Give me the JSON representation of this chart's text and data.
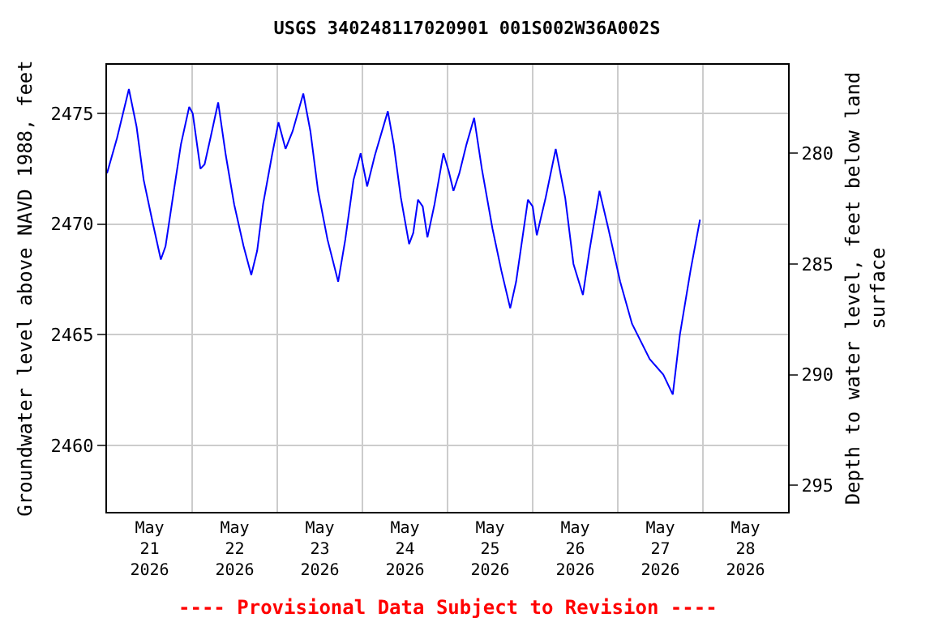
{
  "chart_data": {
    "type": "line",
    "title": "USGS 340248117020901 001S002W36A002S",
    "ylabel": "Groundwater level above NAVD 1988, feet",
    "y2label": "Depth to water level, feet below land\nsurface",
    "annotations": [
      "---- Provisional Data Subject to Revision ----"
    ],
    "xlim": [
      "2026-05-21T00:00",
      "2026-05-29T00:00"
    ],
    "xticks": [
      {
        "value": "2026-05-21T12:00",
        "label": "May\n21\n2026"
      },
      {
        "value": "2026-05-22T00:00",
        "label": null
      },
      {
        "value": "2026-05-22T12:00",
        "label": "May\n22\n2026"
      },
      {
        "value": "2026-05-23T00:00",
        "label": null
      },
      {
        "value": "2026-05-23T12:00",
        "label": "May\n23\n2026"
      },
      {
        "value": "2026-05-24T00:00",
        "label": null
      },
      {
        "value": "2026-05-24T12:00",
        "label": "May\n24\n2026"
      },
      {
        "value": "2026-05-25T00:00",
        "label": null
      },
      {
        "value": "2026-05-25T12:00",
        "label": "May\n25\n2026"
      },
      {
        "value": "2026-05-26T00:00",
        "label": null
      },
      {
        "value": "2026-05-26T12:00",
        "label": "May\n26\n2026"
      },
      {
        "value": "2026-05-27T00:00",
        "label": null
      },
      {
        "value": "2026-05-27T12:00",
        "label": "May\n27\n2026"
      },
      {
        "value": "2026-05-28T00:00",
        "label": null
      },
      {
        "value": "2026-05-28T12:00",
        "label": "May\n28\n2026"
      }
    ],
    "ylim": [
      2457.0,
      2477.2
    ],
    "yticks": [
      2460,
      2465,
      2470,
      2475
    ],
    "y2lim": [
      296.2,
      276.0
    ],
    "y2ticks": [
      280,
      285,
      290,
      295
    ],
    "grid": true,
    "legend": false,
    "series": [
      {
        "color": "#0000ff",
        "line_style": "solid",
        "x": [
          "2026-05-21T00:00",
          "2026-05-21T02:50",
          "2026-05-21T06:10",
          "2026-05-21T08:20",
          "2026-05-21T10:20",
          "2026-05-21T12:50",
          "2026-05-21T15:10",
          "2026-05-21T16:30",
          "2026-05-21T18:50",
          "2026-05-21T20:50",
          "2026-05-21T23:10",
          "2026-05-22T00:10",
          "2026-05-22T02:20",
          "2026-05-22T03:30",
          "2026-05-22T05:10",
          "2026-05-22T07:20",
          "2026-05-22T09:30",
          "2026-05-22T11:50",
          "2026-05-22T14:30",
          "2026-05-22T16:40",
          "2026-05-22T18:20",
          "2026-05-22T20:00",
          "2026-05-22T22:30",
          "2026-05-23T00:20",
          "2026-05-23T02:20",
          "2026-05-23T04:20",
          "2026-05-23T07:20",
          "2026-05-23T09:20",
          "2026-05-23T11:30",
          "2026-05-23T14:10",
          "2026-05-23T17:10",
          "2026-05-23T19:10",
          "2026-05-23T21:30",
          "2026-05-23T23:30",
          "2026-05-24T01:20",
          "2026-05-24T03:30",
          "2026-05-24T07:10",
          "2026-05-24T08:50",
          "2026-05-24T10:50",
          "2026-05-24T13:10",
          "2026-05-24T14:20",
          "2026-05-24T15:40",
          "2026-05-24T17:00",
          "2026-05-24T18:20",
          "2026-05-24T20:20",
          "2026-05-24T22:50",
          "2026-05-25T00:20",
          "2026-05-25T01:40",
          "2026-05-25T03:20",
          "2026-05-25T05:20",
          "2026-05-25T07:30",
          "2026-05-25T09:40",
          "2026-05-25T12:40",
          "2026-05-25T15:10",
          "2026-05-25T17:40",
          "2026-05-25T19:20",
          "2026-05-25T22:40",
          "2026-05-26T00:00",
          "2026-05-26T01:10",
          "2026-05-26T03:40",
          "2026-05-26T06:30",
          "2026-05-26T09:10",
          "2026-05-26T11:30",
          "2026-05-26T14:10",
          "2026-05-26T16:00",
          "2026-05-26T18:50",
          "2026-05-26T21:20",
          "2026-05-27T00:40",
          "2026-05-27T04:00",
          "2026-05-27T09:00",
          "2026-05-27T12:50",
          "2026-05-27T15:30",
          "2026-05-27T17:30",
          "2026-05-27T20:30",
          "2026-05-27T23:10"
        ],
        "values": [
          2472.3,
          2473.9,
          2476.1,
          2474.4,
          2472.0,
          2470.1,
          2468.4,
          2469.0,
          2471.5,
          2473.6,
          2475.3,
          2475.0,
          2472.5,
          2472.7,
          2473.9,
          2475.5,
          2473.1,
          2470.9,
          2469.0,
          2467.7,
          2468.8,
          2470.9,
          2473.1,
          2474.6,
          2473.4,
          2474.2,
          2475.9,
          2474.2,
          2471.5,
          2469.3,
          2467.4,
          2469.3,
          2472.0,
          2473.2,
          2471.7,
          2473.1,
          2475.1,
          2473.6,
          2471.2,
          2469.1,
          2469.6,
          2471.1,
          2470.8,
          2469.4,
          2470.9,
          2473.2,
          2472.4,
          2471.5,
          2472.3,
          2473.6,
          2474.8,
          2472.5,
          2469.8,
          2467.9,
          2466.2,
          2467.4,
          2471.1,
          2470.8,
          2469.5,
          2471.2,
          2473.4,
          2471.2,
          2468.2,
          2466.8,
          2468.8,
          2471.5,
          2469.8,
          2467.4,
          2465.5,
          2463.9,
          2463.2,
          2462.3,
          2465.0,
          2467.9,
          2470.2
        ]
      }
    ]
  }
}
